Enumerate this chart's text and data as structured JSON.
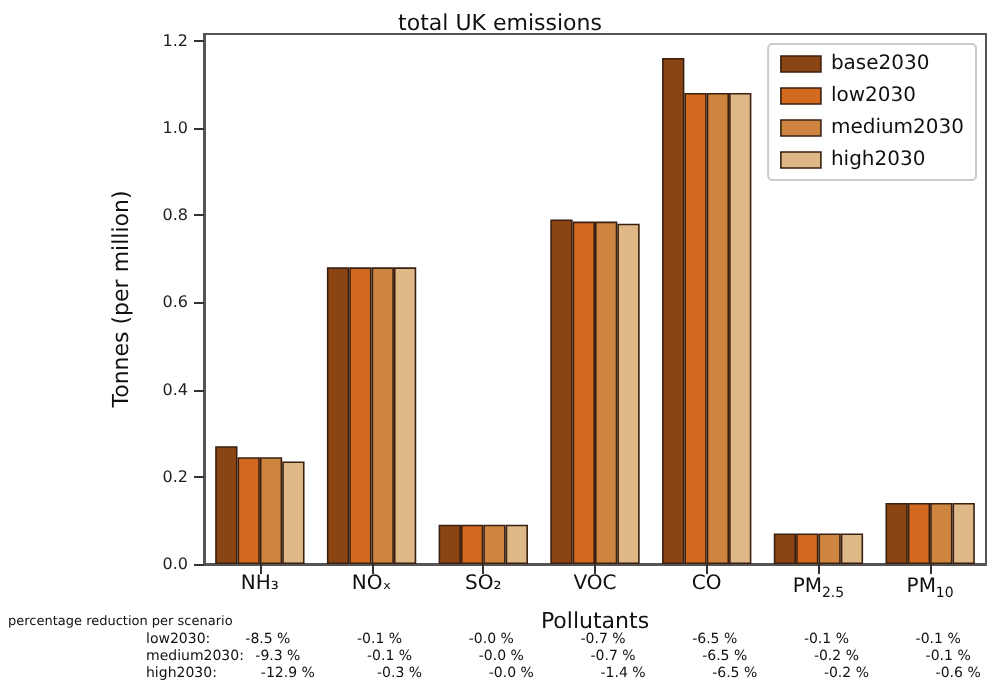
{
  "chart_data": {
    "type": "bar",
    "title": "total UK emissions",
    "xlabel": "Pollutants",
    "ylabel": "Tonnes (per million)",
    "categories": [
      "NH₃",
      "NOₓ",
      "SO₂",
      "VOC",
      "CO",
      "PM$_{2.5}$",
      "PM$_{10}$"
    ],
    "series": [
      {
        "name": "base2030",
        "color": "#8b4513",
        "values": [
          0.27,
          0.68,
          0.09,
          0.79,
          1.16,
          0.07,
          0.14
        ]
      },
      {
        "name": "low2030",
        "color": "#d2691e",
        "values": [
          0.245,
          0.68,
          0.09,
          0.785,
          1.08,
          0.07,
          0.14
        ]
      },
      {
        "name": "medium2030",
        "color": "#cd853f",
        "values": [
          0.245,
          0.68,
          0.09,
          0.785,
          1.08,
          0.07,
          0.14
        ]
      },
      {
        "name": "high2030",
        "color": "#deb887",
        "values": [
          0.235,
          0.68,
          0.09,
          0.78,
          1.08,
          0.07,
          0.14
        ]
      }
    ],
    "ylim": [
      0,
      1.215
    ],
    "yticks": [
      {
        "value": 0,
        "label": "0.0"
      },
      {
        "value": 0.2,
        "label": "0.2"
      },
      {
        "value": 0.4,
        "label": "0.4"
      },
      {
        "value": 0.6,
        "label": "0.6"
      },
      {
        "value": 0.8,
        "label": "0.8"
      },
      {
        "value": 1,
        "label": "1.0"
      },
      {
        "value": 1.2,
        "label": "1.2"
      }
    ],
    "grid": false,
    "legend": "top right",
    "annotations": [
      "percentage reduction per scenario",
      "low2030:  -8.5 %  -0.1 %  -0.0 %  -0.7 %  -6.5 %  -0.1 %  -0.1 %",
      "medium2030:  -9.3 %  -0.1 %  -0.0 %  -0.7 %  -6.5 %  -0.2 %  -0.1 %",
      "high2030:  -12.9 %  -0.3 %  -0.0 %  -1.4 %  -6.5 %  -0.2 %  -0.6 %"
    ]
  }
}
